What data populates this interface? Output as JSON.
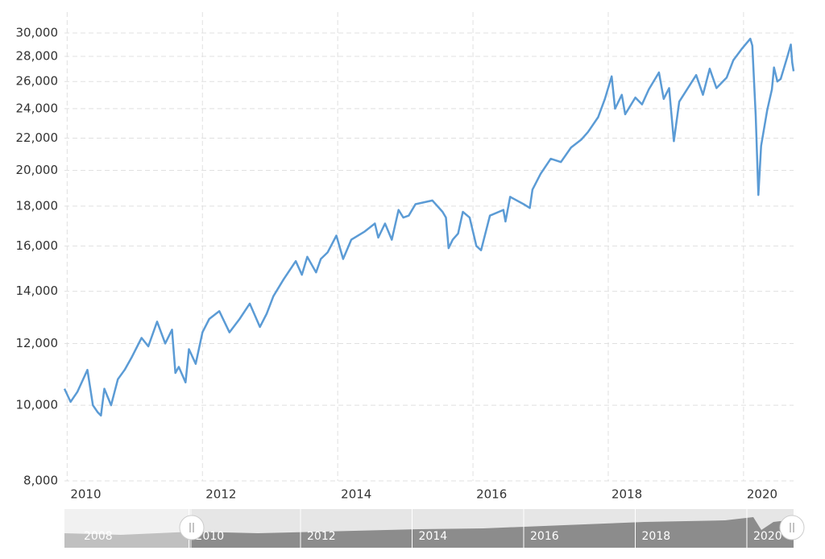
{
  "chart_data": {
    "type": "line",
    "x": [
      2009.96,
      2010.05,
      2010.15,
      2010.3,
      2010.38,
      2010.45,
      2010.5,
      2010.55,
      2010.65,
      2010.75,
      2010.85,
      2010.95,
      2011.1,
      2011.2,
      2011.33,
      2011.45,
      2011.55,
      2011.6,
      2011.65,
      2011.75,
      2011.8,
      2011.9,
      2012.0,
      2012.1,
      2012.25,
      2012.4,
      2012.55,
      2012.7,
      2012.85,
      2012.95,
      2013.05,
      2013.2,
      2013.38,
      2013.47,
      2013.55,
      2013.68,
      2013.75,
      2013.85,
      2013.98,
      2014.08,
      2014.2,
      2014.4,
      2014.55,
      2014.6,
      2014.7,
      2014.8,
      2014.9,
      2014.97,
      2015.05,
      2015.15,
      2015.4,
      2015.55,
      2015.6,
      2015.64,
      2015.7,
      2015.78,
      2015.85,
      2015.95,
      2016.05,
      2016.12,
      2016.25,
      2016.45,
      2016.48,
      2016.55,
      2016.75,
      2016.84,
      2016.88,
      2017.0,
      2017.15,
      2017.3,
      2017.45,
      2017.6,
      2017.7,
      2017.85,
      2017.95,
      2018.05,
      2018.1,
      2018.2,
      2018.25,
      2018.4,
      2018.5,
      2018.6,
      2018.75,
      2018.82,
      2018.9,
      2018.97,
      2019.05,
      2019.3,
      2019.4,
      2019.5,
      2019.6,
      2019.75,
      2019.85,
      2019.97,
      2020.1,
      2020.13,
      2020.18,
      2020.22,
      2020.26,
      2020.35,
      2020.42,
      2020.45,
      2020.5,
      2020.55,
      2020.65,
      2020.7,
      2020.72,
      2020.74
    ],
    "series": [
      {
        "color": "#5b9bd5",
        "values": [
          10500,
          10100,
          10400,
          11100,
          10000,
          9800,
          9700,
          10500,
          10000,
          10800,
          11100,
          11500,
          12200,
          11900,
          12800,
          12000,
          12500,
          11000,
          11200,
          10700,
          11800,
          11300,
          12400,
          12900,
          13200,
          12400,
          12900,
          13500,
          12600,
          13100,
          13800,
          14500,
          15300,
          14700,
          15500,
          14800,
          15400,
          15700,
          16500,
          15400,
          16300,
          16700,
          17100,
          16400,
          17100,
          16300,
          17800,
          17400,
          17500,
          18100,
          18300,
          17700,
          17400,
          15900,
          16300,
          16600,
          17700,
          17400,
          16000,
          15800,
          17500,
          17800,
          17200,
          18500,
          18100,
          17900,
          18900,
          19800,
          20700,
          20500,
          21400,
          21900,
          22400,
          23400,
          24700,
          26400,
          24000,
          25000,
          23600,
          24800,
          24300,
          25400,
          26700,
          24700,
          25500,
          21800,
          24500,
          26500,
          25000,
          27000,
          25500,
          26300,
          27700,
          28600,
          29500,
          28900,
          23500,
          18600,
          21500,
          23900,
          25400,
          27100,
          26000,
          26200,
          28000,
          29000,
          27500,
          26800
        ]
      }
    ],
    "xlim": [
      2009.96,
      2020.74
    ],
    "xticks": [
      2010,
      2012,
      2014,
      2016,
      2018,
      2020
    ],
    "ylim": [
      8000,
      30000
    ],
    "yticks": [
      {
        "value": 8000,
        "label": "8,000"
      },
      {
        "value": 10000,
        "label": "10,000"
      },
      {
        "value": 12000,
        "label": "12,000"
      },
      {
        "value": 14000,
        "label": "14,000"
      },
      {
        "value": 16000,
        "label": "16,000"
      },
      {
        "value": 18000,
        "label": "18,000"
      },
      {
        "value": 20000,
        "label": "20,000"
      },
      {
        "value": 22000,
        "label": "22,000"
      },
      {
        "value": 24000,
        "label": "24,000"
      },
      {
        "value": 26000,
        "label": "26,000"
      },
      {
        "value": 28000,
        "label": "28,000"
      },
      {
        "value": 30000,
        "label": "30,000"
      }
    ],
    "log_y": true,
    "grid": true
  },
  "navigator": {
    "labels": [
      "2008",
      "2010",
      "2012",
      "2014",
      "2016",
      "2018",
      "2020"
    ]
  }
}
